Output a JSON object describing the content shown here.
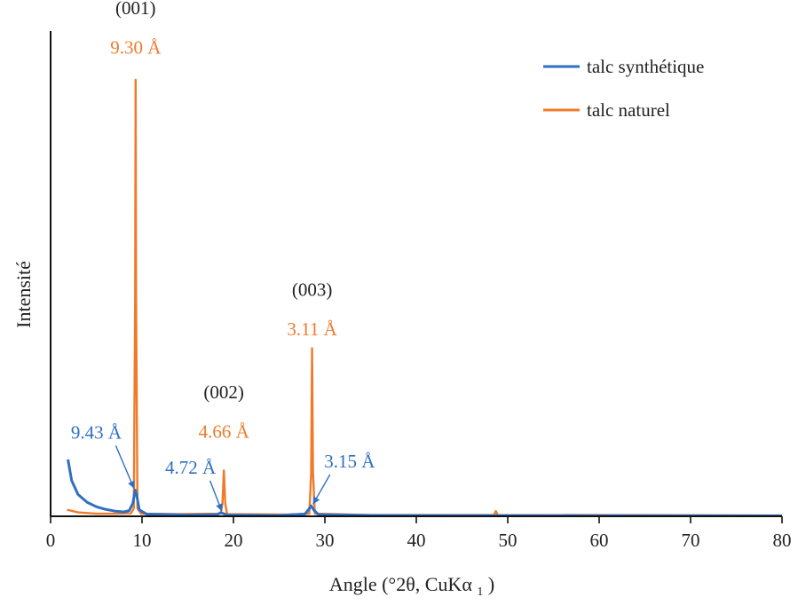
{
  "chart_data": {
    "type": "line",
    "title": "",
    "xlabel": "Angle (°2θ, CuKα",
    "xlabel_subscript": "1",
    "xlabel_close": ")",
    "ylabel": "Intensité",
    "xlim": [
      0,
      80
    ],
    "ylim": [
      0,
      100
    ],
    "x_ticks": [
      0,
      10,
      20,
      30,
      40,
      50,
      60,
      70,
      80
    ],
    "grid": false,
    "legend_position": "top-right",
    "colors": {
      "talc_synthetique": "#2f6fc1",
      "talc_naturel": "#f07a2a",
      "annotation_black": "#222222"
    },
    "series": [
      {
        "name": "talc naturel",
        "color": "#f07a2a",
        "points": [
          [
            1.8,
            1.5
          ],
          [
            3,
            0.9
          ],
          [
            5,
            0.6
          ],
          [
            7,
            0.6
          ],
          [
            8.8,
            0.7
          ],
          [
            9.1,
            1.8
          ],
          [
            9.25,
            50
          ],
          [
            9.3,
            100
          ],
          [
            9.35,
            50
          ],
          [
            9.5,
            1.8
          ],
          [
            9.9,
            0.6
          ],
          [
            14,
            0.5
          ],
          [
            18.6,
            0.6
          ],
          [
            18.8,
            3
          ],
          [
            18.95,
            10.5
          ],
          [
            19.1,
            3
          ],
          [
            19.3,
            0.5
          ],
          [
            26,
            0.4
          ],
          [
            28.3,
            0.6
          ],
          [
            28.5,
            10
          ],
          [
            28.6,
            38.5
          ],
          [
            28.7,
            10
          ],
          [
            28.9,
            0.6
          ],
          [
            35,
            0.3
          ],
          [
            48.5,
            0.3
          ],
          [
            48.7,
            1.2
          ],
          [
            48.9,
            0.3
          ],
          [
            80,
            0.2
          ]
        ]
      },
      {
        "name": "talc synthétique",
        "color": "#2f6fc1",
        "points": [
          [
            1.9,
            13
          ],
          [
            2.3,
            8.2
          ],
          [
            3,
            5
          ],
          [
            4,
            3.2
          ],
          [
            5,
            2.2
          ],
          [
            6,
            1.6
          ],
          [
            7,
            1.2
          ],
          [
            8,
            1
          ],
          [
            8.6,
            1.3
          ],
          [
            9,
            3
          ],
          [
            9.25,
            6
          ],
          [
            9.4,
            5
          ],
          [
            9.7,
            1.5
          ],
          [
            10.5,
            0.5
          ],
          [
            15,
            0.3
          ],
          [
            18.2,
            0.4
          ],
          [
            18.6,
            0.8
          ],
          [
            18.8,
            0.7
          ],
          [
            19.3,
            0.3
          ],
          [
            25,
            0.2
          ],
          [
            27.8,
            0.5
          ],
          [
            28.2,
            1.5
          ],
          [
            28.5,
            2.4
          ],
          [
            28.8,
            1.4
          ],
          [
            29.3,
            0.4
          ],
          [
            35,
            0.2
          ],
          [
            80,
            0.1
          ]
        ]
      }
    ],
    "annotations": [
      {
        "label": "(001)",
        "color": "#222222",
        "x": 9.3,
        "y": 115
      },
      {
        "label": "9.30 Å",
        "color": "#f07a2a",
        "x": 9.3,
        "y": 106
      },
      {
        "label": "(002)",
        "color": "#222222",
        "x": 18.95,
        "y": 27
      },
      {
        "label": "4.66 Å",
        "color": "#f07a2a",
        "x": 18.95,
        "y": 18
      },
      {
        "label": "(003)",
        "color": "#222222",
        "x": 28.6,
        "y": 50.5
      },
      {
        "label": "3.11 Å",
        "color": "#f07a2a",
        "x": 28.6,
        "y": 41.5
      },
      {
        "label": "9.43 Å",
        "color": "#2f6fc1",
        "x": 5,
        "y": 17.8,
        "arrow_to": [
          9.2,
          6
        ]
      },
      {
        "label": "4.72 Å",
        "color": "#2f6fc1",
        "x": 15.3,
        "y": 9.8,
        "arrow_to": [
          18.8,
          0.8
        ]
      },
      {
        "label": "3.15 Å",
        "color": "#2f6fc1",
        "x": 32.7,
        "y": 11.2,
        "arrow_to": [
          28.6,
          2.4
        ]
      }
    ]
  }
}
